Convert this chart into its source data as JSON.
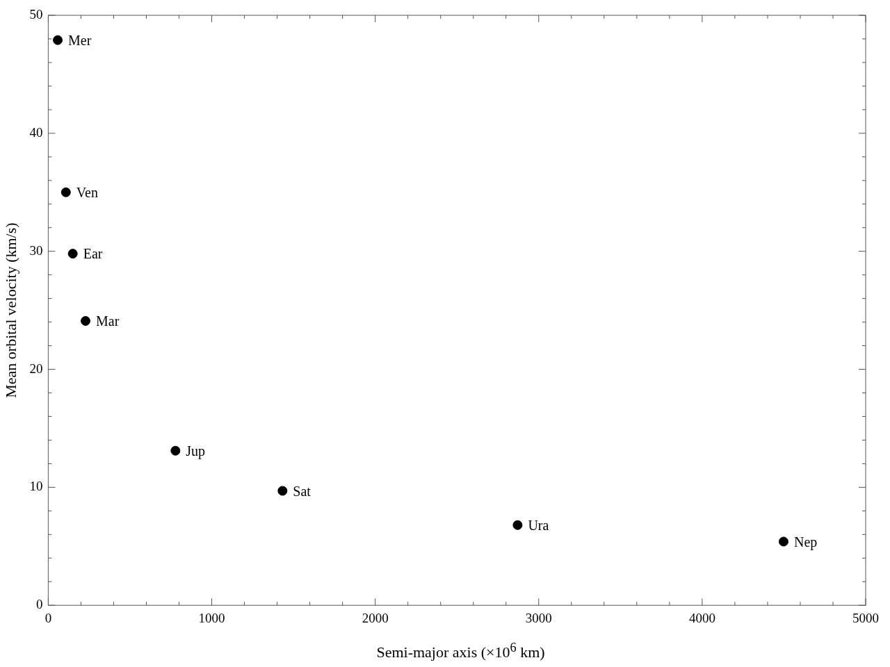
{
  "chart_data": {
    "type": "scatter",
    "xlabel": "Semi-major axis (×10$^{6}$ km)",
    "ylabel": "Mean orbital velocity (km/s)",
    "x": [
      58,
      108,
      150,
      228,
      778,
      1433,
      2871,
      4498
    ],
    "values": [
      47.9,
      35.0,
      29.8,
      24.1,
      13.1,
      9.7,
      6.8,
      5.4
    ],
    "color": "#000000",
    "marker": "circle",
    "grid": false,
    "legend": false,
    "xlim": [
      0,
      5000
    ],
    "ylim": [
      0,
      50
    ],
    "xticks": [
      0,
      {
        "value": 200,
        "label": null
      },
      {
        "value": 400,
        "label": null
      },
      {
        "value": 600,
        "label": null
      },
      {
        "value": 800,
        "label": null
      },
      1000,
      {
        "value": 1200,
        "label": null
      },
      {
        "value": 1400,
        "label": null
      },
      {
        "value": 1600,
        "label": null
      },
      {
        "value": 1800,
        "label": null
      },
      2000,
      {
        "value": 2200,
        "label": null
      },
      {
        "value": 2400,
        "label": null
      },
      {
        "value": 2600,
        "label": null
      },
      {
        "value": 2800,
        "label": null
      },
      3000,
      {
        "value": 3200,
        "label": null
      },
      {
        "value": 3400,
        "label": null
      },
      {
        "value": 3600,
        "label": null
      },
      {
        "value": 3800,
        "label": null
      },
      4000,
      {
        "value": 4200,
        "label": null
      },
      {
        "value": 4400,
        "label": null
      },
      {
        "value": 4600,
        "label": null
      },
      {
        "value": 4800,
        "label": null
      },
      5000
    ],
    "yticks": [
      0,
      {
        "value": 2,
        "label": null
      },
      {
        "value": 4,
        "label": null
      },
      {
        "value": 6,
        "label": null
      },
      {
        "value": 8,
        "label": null
      },
      10,
      {
        "value": 12,
        "label": null
      },
      {
        "value": 14,
        "label": null
      },
      {
        "value": 16,
        "label": null
      },
      {
        "value": 18,
        "label": null
      },
      20,
      {
        "value": 22,
        "label": null
      },
      {
        "value": 24,
        "label": null
      },
      {
        "value": 26,
        "label": null
      },
      {
        "value": 28,
        "label": null
      },
      30,
      {
        "value": 32,
        "label": null
      },
      {
        "value": 34,
        "label": null
      },
      {
        "value": 36,
        "label": null
      },
      {
        "value": 38,
        "label": null
      },
      40,
      {
        "value": 42,
        "label": null
      },
      {
        "value": 44,
        "label": null
      },
      {
        "value": 46,
        "label": null
      },
      {
        "value": 48,
        "label": null
      },
      50
    ],
    "annotations": [
      {
        "text": "Mer",
        "x": 58,
        "y": 47.9
      },
      {
        "text": "Ven",
        "x": 108,
        "y": 35.0
      },
      {
        "text": "Ear",
        "x": 150,
        "y": 29.8
      },
      {
        "text": "Mar",
        "x": 228,
        "y": 24.1
      },
      {
        "text": "Jup",
        "x": 778,
        "y": 13.1
      },
      {
        "text": "Sat",
        "x": 1433,
        "y": 9.7
      },
      {
        "text": "Ura",
        "x": 2871,
        "y": 6.8
      },
      {
        "text": "Nep",
        "x": 4498,
        "y": 5.4
      }
    ]
  }
}
